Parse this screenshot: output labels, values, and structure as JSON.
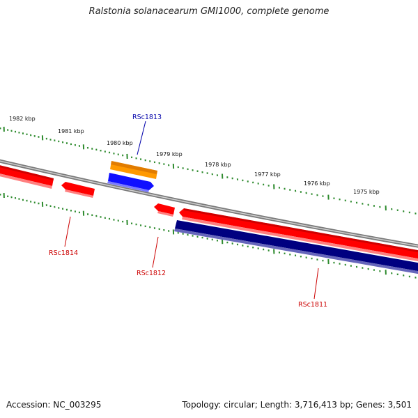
{
  "map": {
    "title": "Ralstonia solanacearum GMI1000, complete genome",
    "accession_label": "Accession:",
    "accession": "NC_003295",
    "topology_label": "Topology:",
    "topology": "circular",
    "length_label": "Length:",
    "length": "3,716,413 bp",
    "genes_label": "Genes:",
    "genes": "3,501"
  },
  "colors": {
    "backbone": "#7a7a7a",
    "tick": "#2e8b2e",
    "gene_forward": "#ff0000",
    "gene_reverse": "#ff0000",
    "cds_forward": "#0000ee",
    "cds_reverse": "#000080",
    "rna": "#ff8c00",
    "label_red": "#cc0000",
    "label_blue": "#0000aa"
  },
  "scale": {
    "kbp_labels": [
      "1982 kbp",
      "1981 kbp",
      "1980 kbp",
      "1979 kbp",
      "1978 kbp",
      "1977 kbp",
      "1976 kbp",
      "1975 kbp"
    ]
  },
  "genes": [
    {
      "name": "RSc1814",
      "color": "red"
    },
    {
      "name": "RSc1813",
      "color": "blue"
    },
    {
      "name": "RSc1812",
      "color": "red"
    },
    {
      "name": "RSc1811",
      "color": "red"
    }
  ]
}
